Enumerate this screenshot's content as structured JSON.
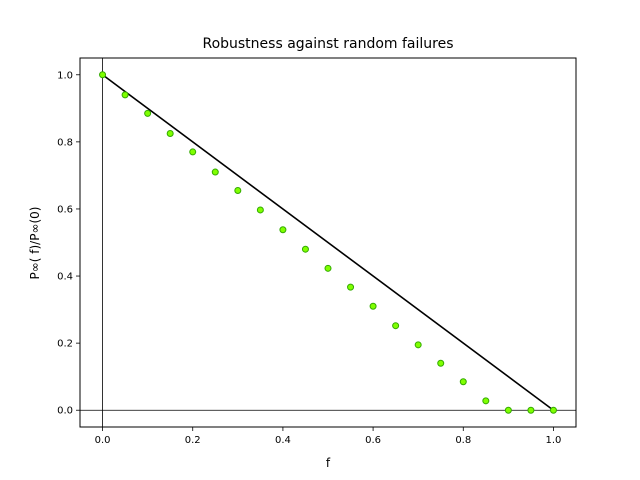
{
  "chart_data": {
    "type": "scatter",
    "title": "Robustness against random failures",
    "xlabel": "f",
    "ylabel": "P∞( f)/P∞(0)",
    "xlim": [
      -0.05,
      1.05
    ],
    "ylim": [
      -0.05,
      1.05
    ],
    "xticks": [
      "0.0",
      "0.2",
      "0.4",
      "0.6",
      "0.8",
      "1.0"
    ],
    "yticks": [
      "0.0",
      "0.2",
      "0.4",
      "0.6",
      "0.8",
      "1.0"
    ],
    "grid": false,
    "reference_lines": {
      "x": 0,
      "y": 0
    },
    "series": [
      {
        "kind": "line",
        "color": "#000000",
        "x": [
          0.0,
          1.0
        ],
        "y": [
          1.0,
          0.0
        ]
      },
      {
        "kind": "scatter",
        "color": "#7fff00",
        "edge_color": "#33aa00",
        "x": [
          0.0,
          0.05,
          0.1,
          0.15,
          0.2,
          0.25,
          0.3,
          0.35,
          0.4,
          0.45,
          0.5,
          0.55,
          0.6,
          0.65,
          0.7,
          0.75,
          0.8,
          0.85,
          0.9,
          0.95,
          1.0
        ],
        "y": [
          1.0,
          0.94,
          0.885,
          0.825,
          0.77,
          0.71,
          0.655,
          0.597,
          0.538,
          0.48,
          0.423,
          0.367,
          0.31,
          0.252,
          0.195,
          0.14,
          0.085,
          0.028,
          0.0,
          0.0,
          0.0
        ]
      }
    ]
  }
}
